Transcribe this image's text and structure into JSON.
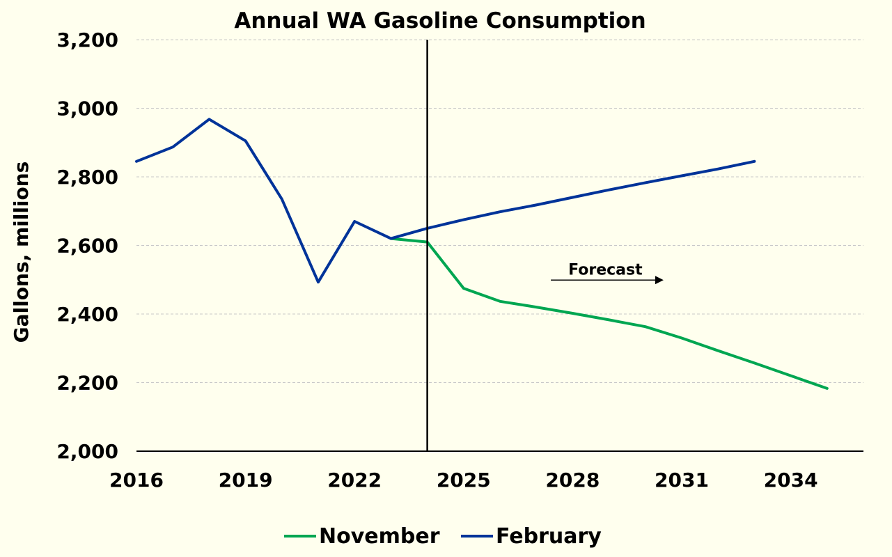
{
  "chart_data": {
    "type": "line",
    "title": "Annual WA Gasoline Consumption",
    "xlabel": "",
    "ylabel": "Gallons, millions",
    "x_range": [
      2016,
      2036
    ],
    "ylim": [
      2000,
      3200
    ],
    "y_ticks": [
      2000,
      2200,
      2400,
      2600,
      2800,
      3000,
      3200
    ],
    "y_tick_labels": [
      "2,000",
      "2,200",
      "2,400",
      "2,600",
      "2,800",
      "3,000",
      "3,200"
    ],
    "x_ticks": [
      2016,
      2019,
      2022,
      2025,
      2028,
      2031,
      2034
    ],
    "x_tick_labels": [
      "2016",
      "2019",
      "2022",
      "2025",
      "2028",
      "2031",
      "2034"
    ],
    "grid": true,
    "forecast_start": 2024,
    "annotation": "Forecast",
    "legend_position": "bottom",
    "series": [
      {
        "name": "November",
        "color": "#00A651",
        "x": [
          2023,
          2024,
          2025,
          2026,
          2027,
          2028,
          2029,
          2030,
          2031,
          2032,
          2033,
          2034,
          2035
        ],
        "values": [
          2620,
          2610,
          2475,
          2437,
          2420,
          2402,
          2383,
          2363,
          2330,
          2293,
          2257,
          2220,
          2183
        ]
      },
      {
        "name": "February",
        "color": "#003399",
        "x": [
          2016,
          2017,
          2018,
          2019,
          2020,
          2021,
          2022,
          2023,
          2024,
          2025,
          2026,
          2027,
          2028,
          2029,
          2030,
          2031,
          2032,
          2033
        ],
        "values": [
          2845,
          2887,
          2968,
          2905,
          2735,
          2493,
          2670,
          2620,
          2650,
          2675,
          2698,
          2718,
          2740,
          2762,
          2783,
          2803,
          2823,
          2845
        ]
      }
    ]
  }
}
